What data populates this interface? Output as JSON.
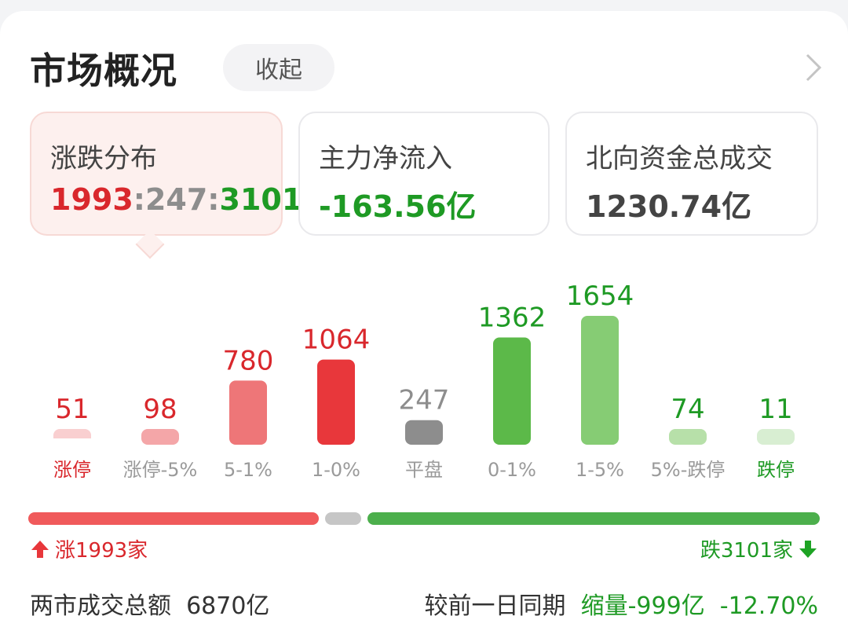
{
  "header": {
    "title": "市场概况",
    "collapse_label": "收起"
  },
  "cards": [
    {
      "label": "涨跌分布",
      "value_up": "1993",
      "value_flat": "247",
      "value_down": "3101"
    },
    {
      "label": "主力净流入",
      "value": "-163.56亿"
    },
    {
      "label": "北向资金总成交",
      "value": "1230.74亿"
    }
  ],
  "colors": {
    "red": "#e8373b",
    "green": "#1ea324",
    "grey": "#8d8d8d"
  },
  "chart_data": {
    "type": "bar",
    "categories": [
      "涨停",
      "涨停-5%",
      "5-1%",
      "1-0%",
      "平盘",
      "0-1%",
      "1-5%",
      "5%-跌停",
      "跌停"
    ],
    "values": [
      51,
      98,
      780,
      1064,
      247,
      1362,
      1654,
      74,
      11
    ],
    "bar_colors": [
      "#f9cfd0",
      "#f4a6a8",
      "#ee7678",
      "#e8373b",
      "#8d8d8d",
      "#5cb949",
      "#86cc74",
      "#b7e0a9",
      "#d8eed2"
    ],
    "label_colors": [
      "#d9272c",
      "#9a9a9a",
      "#9a9a9a",
      "#9a9a9a",
      "#9a9a9a",
      "#9a9a9a",
      "#9a9a9a",
      "#9a9a9a",
      "#1e9a24"
    ],
    "value_colors": [
      "#d9272c",
      "#d9272c",
      "#d9272c",
      "#d9272c",
      "#8d8d8d",
      "#1e9a24",
      "#1e9a24",
      "#1e9a24",
      "#1e9a24"
    ]
  },
  "summary": {
    "up_label": "涨1993家",
    "down_label": "跌3101家",
    "up_count": 1993,
    "flat_count": 247,
    "down_count": 3101
  },
  "footer": {
    "total_label": "两市成交总额",
    "total_value": "6870亿",
    "compare_label": "较前一日同期",
    "change_amount": "缩量-999亿",
    "change_pct": "-12.70%"
  }
}
